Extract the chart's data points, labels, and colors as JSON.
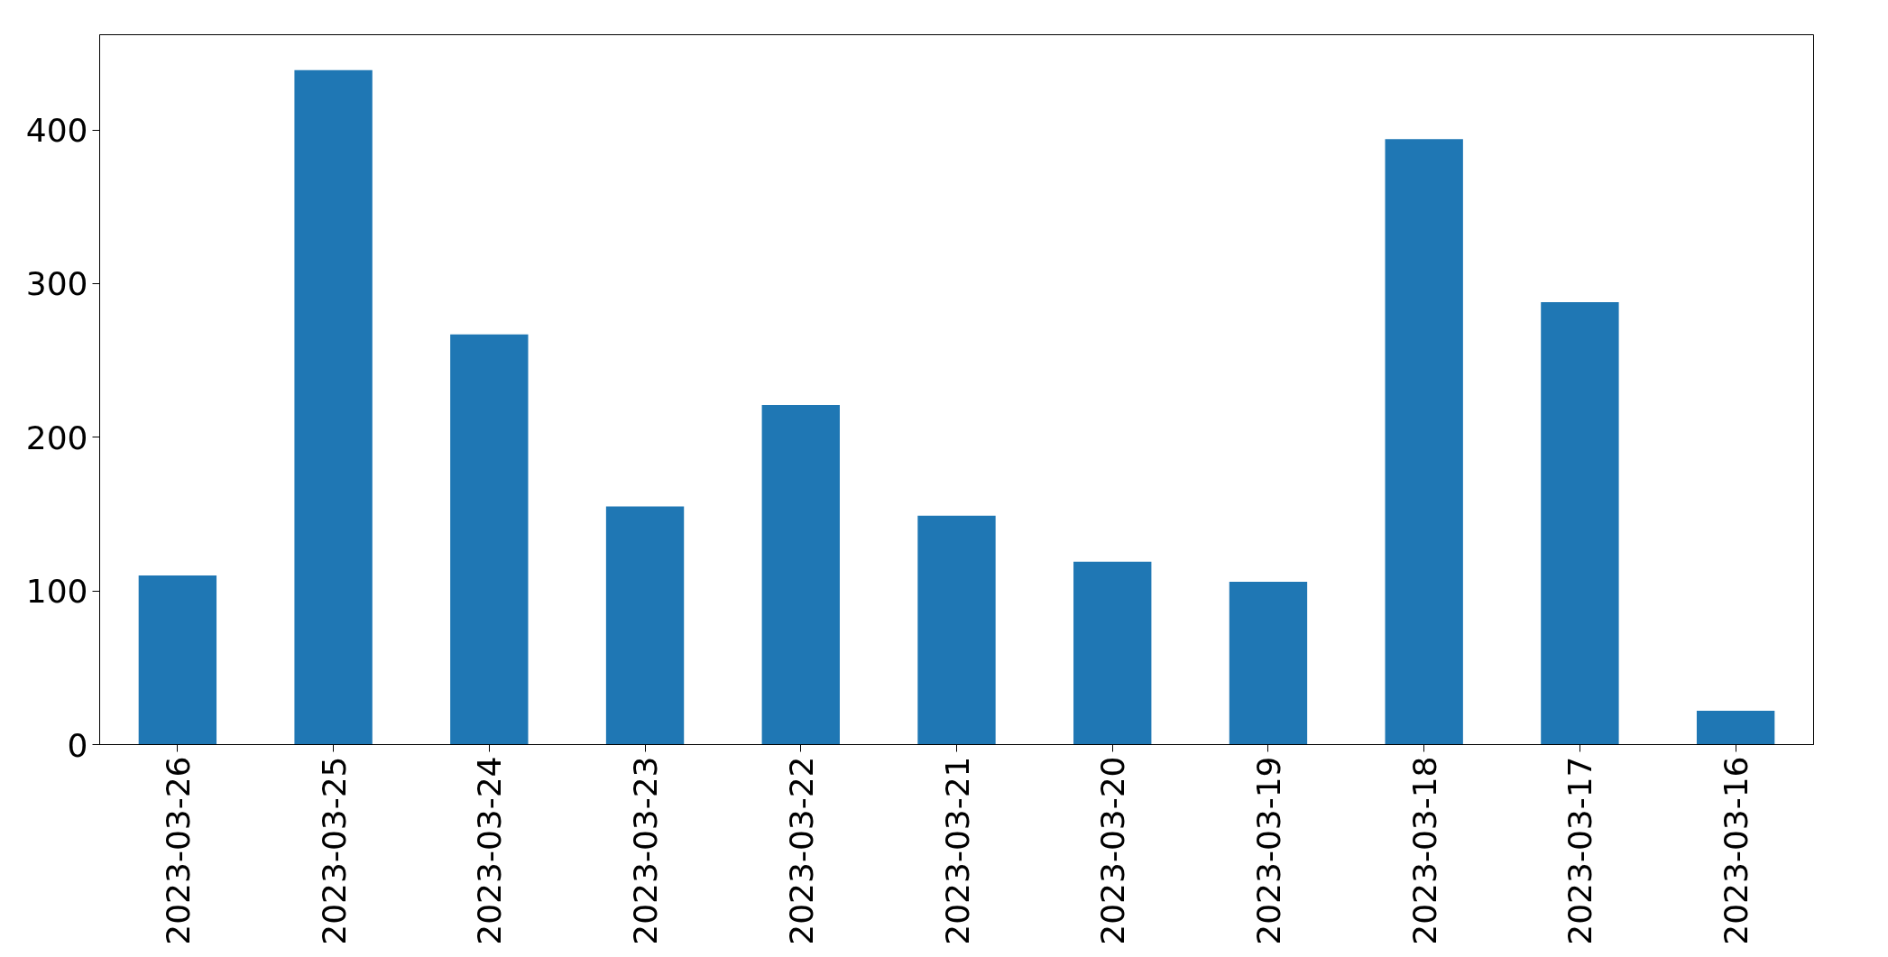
{
  "chart_data": {
    "type": "bar",
    "categories": [
      "2023-03-26",
      "2023-03-25",
      "2023-03-24",
      "2023-03-23",
      "2023-03-22",
      "2023-03-21",
      "2023-03-20",
      "2023-03-19",
      "2023-03-18",
      "2023-03-17",
      "2023-03-16"
    ],
    "values": [
      110,
      439,
      267,
      155,
      221,
      149,
      119,
      106,
      394,
      288,
      22
    ],
    "color": "#1f77b4",
    "ylim": [
      0,
      462
    ],
    "yticks": [
      0,
      100,
      200,
      300,
      400
    ],
    "grid": false
  }
}
